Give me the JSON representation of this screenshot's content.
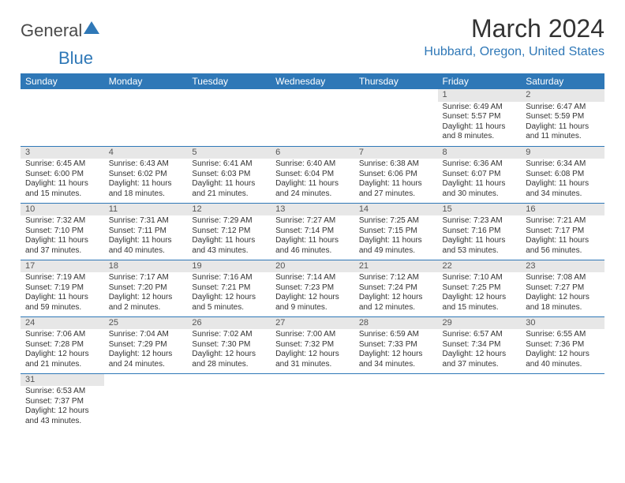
{
  "brand": {
    "part1": "General",
    "part2": "Blue",
    "logo_color": "#2f78b7"
  },
  "title": "March 2024",
  "location": "Hubbard, Oregon, United States",
  "colors": {
    "header_bg": "#2f78b7",
    "header_fg": "#ffffff",
    "daynum_bg": "#e7e7e7",
    "row_border": "#2f78b7",
    "text": "#333333"
  },
  "day_labels": [
    "Sunday",
    "Monday",
    "Tuesday",
    "Wednesday",
    "Thursday",
    "Friday",
    "Saturday"
  ],
  "weeks": [
    [
      null,
      null,
      null,
      null,
      null,
      {
        "n": "1",
        "sunrise": "Sunrise: 6:49 AM",
        "sunset": "Sunset: 5:57 PM",
        "day": "Daylight: 11 hours and 8 minutes."
      },
      {
        "n": "2",
        "sunrise": "Sunrise: 6:47 AM",
        "sunset": "Sunset: 5:59 PM",
        "day": "Daylight: 11 hours and 11 minutes."
      }
    ],
    [
      {
        "n": "3",
        "sunrise": "Sunrise: 6:45 AM",
        "sunset": "Sunset: 6:00 PM",
        "day": "Daylight: 11 hours and 15 minutes."
      },
      {
        "n": "4",
        "sunrise": "Sunrise: 6:43 AM",
        "sunset": "Sunset: 6:02 PM",
        "day": "Daylight: 11 hours and 18 minutes."
      },
      {
        "n": "5",
        "sunrise": "Sunrise: 6:41 AM",
        "sunset": "Sunset: 6:03 PM",
        "day": "Daylight: 11 hours and 21 minutes."
      },
      {
        "n": "6",
        "sunrise": "Sunrise: 6:40 AM",
        "sunset": "Sunset: 6:04 PM",
        "day": "Daylight: 11 hours and 24 minutes."
      },
      {
        "n": "7",
        "sunrise": "Sunrise: 6:38 AM",
        "sunset": "Sunset: 6:06 PM",
        "day": "Daylight: 11 hours and 27 minutes."
      },
      {
        "n": "8",
        "sunrise": "Sunrise: 6:36 AM",
        "sunset": "Sunset: 6:07 PM",
        "day": "Daylight: 11 hours and 30 minutes."
      },
      {
        "n": "9",
        "sunrise": "Sunrise: 6:34 AM",
        "sunset": "Sunset: 6:08 PM",
        "day": "Daylight: 11 hours and 34 minutes."
      }
    ],
    [
      {
        "n": "10",
        "sunrise": "Sunrise: 7:32 AM",
        "sunset": "Sunset: 7:10 PM",
        "day": "Daylight: 11 hours and 37 minutes."
      },
      {
        "n": "11",
        "sunrise": "Sunrise: 7:31 AM",
        "sunset": "Sunset: 7:11 PM",
        "day": "Daylight: 11 hours and 40 minutes."
      },
      {
        "n": "12",
        "sunrise": "Sunrise: 7:29 AM",
        "sunset": "Sunset: 7:12 PM",
        "day": "Daylight: 11 hours and 43 minutes."
      },
      {
        "n": "13",
        "sunrise": "Sunrise: 7:27 AM",
        "sunset": "Sunset: 7:14 PM",
        "day": "Daylight: 11 hours and 46 minutes."
      },
      {
        "n": "14",
        "sunrise": "Sunrise: 7:25 AM",
        "sunset": "Sunset: 7:15 PM",
        "day": "Daylight: 11 hours and 49 minutes."
      },
      {
        "n": "15",
        "sunrise": "Sunrise: 7:23 AM",
        "sunset": "Sunset: 7:16 PM",
        "day": "Daylight: 11 hours and 53 minutes."
      },
      {
        "n": "16",
        "sunrise": "Sunrise: 7:21 AM",
        "sunset": "Sunset: 7:17 PM",
        "day": "Daylight: 11 hours and 56 minutes."
      }
    ],
    [
      {
        "n": "17",
        "sunrise": "Sunrise: 7:19 AM",
        "sunset": "Sunset: 7:19 PM",
        "day": "Daylight: 11 hours and 59 minutes."
      },
      {
        "n": "18",
        "sunrise": "Sunrise: 7:17 AM",
        "sunset": "Sunset: 7:20 PM",
        "day": "Daylight: 12 hours and 2 minutes."
      },
      {
        "n": "19",
        "sunrise": "Sunrise: 7:16 AM",
        "sunset": "Sunset: 7:21 PM",
        "day": "Daylight: 12 hours and 5 minutes."
      },
      {
        "n": "20",
        "sunrise": "Sunrise: 7:14 AM",
        "sunset": "Sunset: 7:23 PM",
        "day": "Daylight: 12 hours and 9 minutes."
      },
      {
        "n": "21",
        "sunrise": "Sunrise: 7:12 AM",
        "sunset": "Sunset: 7:24 PM",
        "day": "Daylight: 12 hours and 12 minutes."
      },
      {
        "n": "22",
        "sunrise": "Sunrise: 7:10 AM",
        "sunset": "Sunset: 7:25 PM",
        "day": "Daylight: 12 hours and 15 minutes."
      },
      {
        "n": "23",
        "sunrise": "Sunrise: 7:08 AM",
        "sunset": "Sunset: 7:27 PM",
        "day": "Daylight: 12 hours and 18 minutes."
      }
    ],
    [
      {
        "n": "24",
        "sunrise": "Sunrise: 7:06 AM",
        "sunset": "Sunset: 7:28 PM",
        "day": "Daylight: 12 hours and 21 minutes."
      },
      {
        "n": "25",
        "sunrise": "Sunrise: 7:04 AM",
        "sunset": "Sunset: 7:29 PM",
        "day": "Daylight: 12 hours and 24 minutes."
      },
      {
        "n": "26",
        "sunrise": "Sunrise: 7:02 AM",
        "sunset": "Sunset: 7:30 PM",
        "day": "Daylight: 12 hours and 28 minutes."
      },
      {
        "n": "27",
        "sunrise": "Sunrise: 7:00 AM",
        "sunset": "Sunset: 7:32 PM",
        "day": "Daylight: 12 hours and 31 minutes."
      },
      {
        "n": "28",
        "sunrise": "Sunrise: 6:59 AM",
        "sunset": "Sunset: 7:33 PM",
        "day": "Daylight: 12 hours and 34 minutes."
      },
      {
        "n": "29",
        "sunrise": "Sunrise: 6:57 AM",
        "sunset": "Sunset: 7:34 PM",
        "day": "Daylight: 12 hours and 37 minutes."
      },
      {
        "n": "30",
        "sunrise": "Sunrise: 6:55 AM",
        "sunset": "Sunset: 7:36 PM",
        "day": "Daylight: 12 hours and 40 minutes."
      }
    ],
    [
      {
        "n": "31",
        "sunrise": "Sunrise: 6:53 AM",
        "sunset": "Sunset: 7:37 PM",
        "day": "Daylight: 12 hours and 43 minutes."
      },
      null,
      null,
      null,
      null,
      null,
      null
    ]
  ]
}
